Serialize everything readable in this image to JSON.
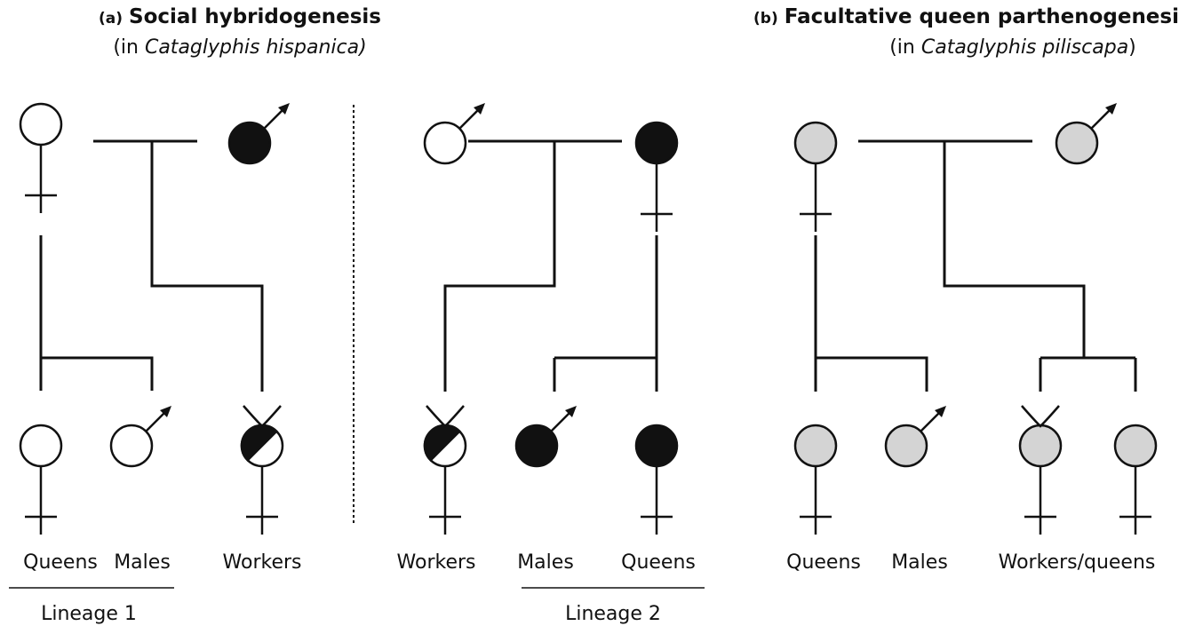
{
  "panels": [
    {
      "tag": "(a)",
      "title": "Social hybridogenesis",
      "subtitle": {
        "prefix": "(in ",
        "species": "Cataglyphis hispanica)"
      }
    },
    {
      "tag": "(b)",
      "title": "Facultative queen parthenogenesi",
      "subtitle": {
        "prefix": "(in ",
        "species": "Cataglyphis piliscapa",
        "suffix": ")"
      }
    }
  ],
  "offspring_labels": [
    "Queens",
    "Males",
    "Workers",
    "Workers",
    "Males",
    "Queens",
    "Queens",
    "Males",
    "Workers/queens"
  ],
  "lineages": [
    "Lineage 1",
    "Lineage 2"
  ]
}
